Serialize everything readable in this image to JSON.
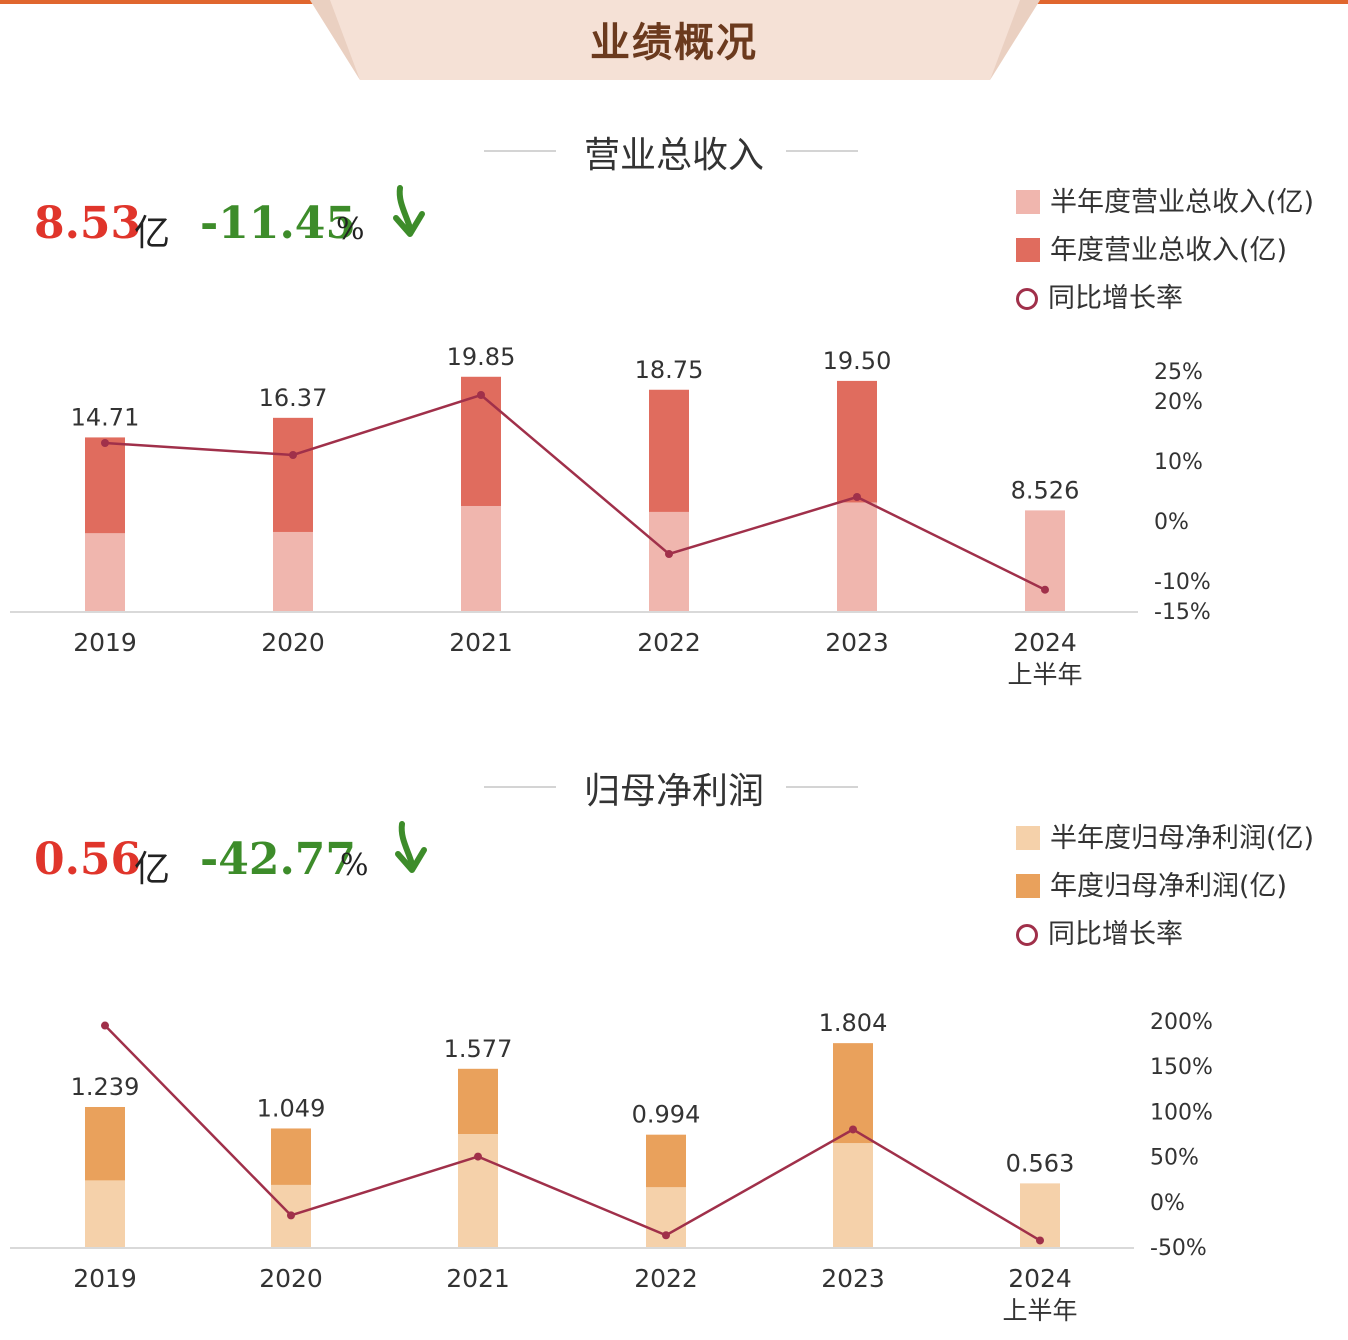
{
  "header": {
    "title": "业绩概况"
  },
  "colors": {
    "revenue_half": "#f0b6ae",
    "revenue_year": "#e06c5e",
    "profit_half": "#f5d1aa",
    "profit_year": "#e9a15c",
    "line": "#a0304a",
    "value_red": "#e0352b",
    "value_green": "#3d8c2a"
  },
  "sections": [
    {
      "title": "营业总收入",
      "headline_value": "8.53",
      "headline_unit": "亿",
      "headline_change": "-11.45",
      "headline_change_unit": "%",
      "trend_icon": "arrow-down-icon",
      "legend": [
        "半年度营业总收入(亿)",
        "年度营业总收入(亿)",
        "同比增长率"
      ]
    },
    {
      "title": "归母净利润",
      "headline_value": "0.56",
      "headline_unit": "亿",
      "headline_change": "-42.77",
      "headline_change_unit": "%",
      "trend_icon": "arrow-down-icon",
      "legend": [
        "半年度归母净利润(亿)",
        "年度归母净利润(亿)",
        "同比增长率"
      ]
    }
  ],
  "chart_data": [
    {
      "type": "bar",
      "title": "营业总收入",
      "categories": [
        "2019",
        "2020",
        "2021",
        "2022",
        "2023",
        "2024\n上半年"
      ],
      "series": [
        {
          "name": "半年度营业总收入(亿)",
          "values": [
            6.6,
            6.7,
            8.9,
            8.4,
            9.2,
            8.526
          ]
        },
        {
          "name": "年度营业总收入(亿)",
          "values": [
            14.71,
            16.37,
            19.85,
            18.75,
            19.5,
            null
          ]
        },
        {
          "name": "同比增长率",
          "axis": "right",
          "values": [
            13,
            11,
            21,
            -5.5,
            4,
            -11.45
          ]
        }
      ],
      "data_labels": [
        "14.71",
        "16.37",
        "19.85",
        "18.75",
        "19.50",
        "8.526"
      ],
      "ylim_left": [
        0,
        20
      ],
      "ylim_right": [
        -15,
        25
      ],
      "right_ticks": [
        "25%",
        "20%",
        "10%",
        "0%",
        "-10%",
        "-15%"
      ]
    },
    {
      "type": "bar",
      "title": "归母净利润",
      "categories": [
        "2019",
        "2020",
        "2021",
        "2022",
        "2023",
        "2024\n上半年"
      ],
      "series": [
        {
          "name": "半年度归母净利润(亿)",
          "values": [
            0.59,
            0.55,
            1.0,
            0.53,
            0.92,
            0.563
          ]
        },
        {
          "name": "年度归母净利润(亿)",
          "values": [
            1.239,
            1.049,
            1.577,
            0.994,
            1.804,
            null
          ]
        },
        {
          "name": "同比增长率",
          "axis": "right",
          "values": [
            195,
            -15,
            50,
            -37,
            80,
            -42.77
          ]
        }
      ],
      "data_labels": [
        "1.239",
        "1.049",
        "1.577",
        "0.994",
        "1.804",
        "0.563"
      ],
      "ylim_left": [
        0,
        2
      ],
      "ylim_right": [
        -50,
        200
      ],
      "right_ticks": [
        "200%",
        "150%",
        "100%",
        "50%",
        "0%",
        "-50%"
      ]
    }
  ]
}
